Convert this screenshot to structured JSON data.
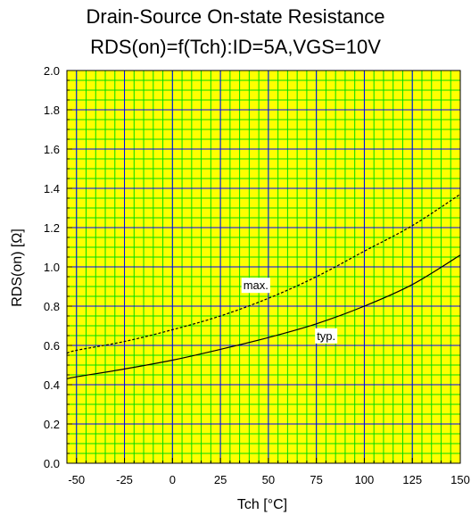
{
  "chart_data": {
    "type": "line",
    "title": "Drain-Source On-state Resistance",
    "subtitle": "RDS(on)=f(Tch):ID=5A,VGS=10V",
    "xlabel": "Tch [°C]",
    "ylabel": "RDS(on) [Ω]",
    "xlim": [
      -55,
      150
    ],
    "ylim": [
      0,
      2.0
    ],
    "x_ticks": [
      "-50",
      "-25",
      "0",
      "25",
      "50",
      "75",
      "100",
      "125",
      "150"
    ],
    "y_ticks": [
      "0.0",
      "0.2",
      "0.4",
      "0.6",
      "0.8",
      "1.0",
      "1.2",
      "1.4",
      "1.6",
      "1.8",
      "2.0"
    ],
    "grid": true,
    "series": [
      {
        "name": "max.",
        "style": "dashed",
        "color": "#000000",
        "x": [
          -55,
          -50,
          -25,
          0,
          25,
          50,
          75,
          100,
          125,
          150
        ],
        "y": [
          0.56,
          0.575,
          0.62,
          0.68,
          0.75,
          0.84,
          0.95,
          1.08,
          1.21,
          1.37
        ]
      },
      {
        "name": "typ.",
        "style": "solid",
        "color": "#000000",
        "x": [
          -55,
          -50,
          -25,
          0,
          25,
          50,
          75,
          100,
          125,
          150
        ],
        "y": [
          0.43,
          0.44,
          0.48,
          0.525,
          0.58,
          0.64,
          0.71,
          0.8,
          0.91,
          1.06
        ]
      }
    ],
    "colors": {
      "plot_background": "#ffff00",
      "minor_grid": "#00dd00",
      "major_grid": "#0000ff",
      "axes": "#000000"
    }
  }
}
